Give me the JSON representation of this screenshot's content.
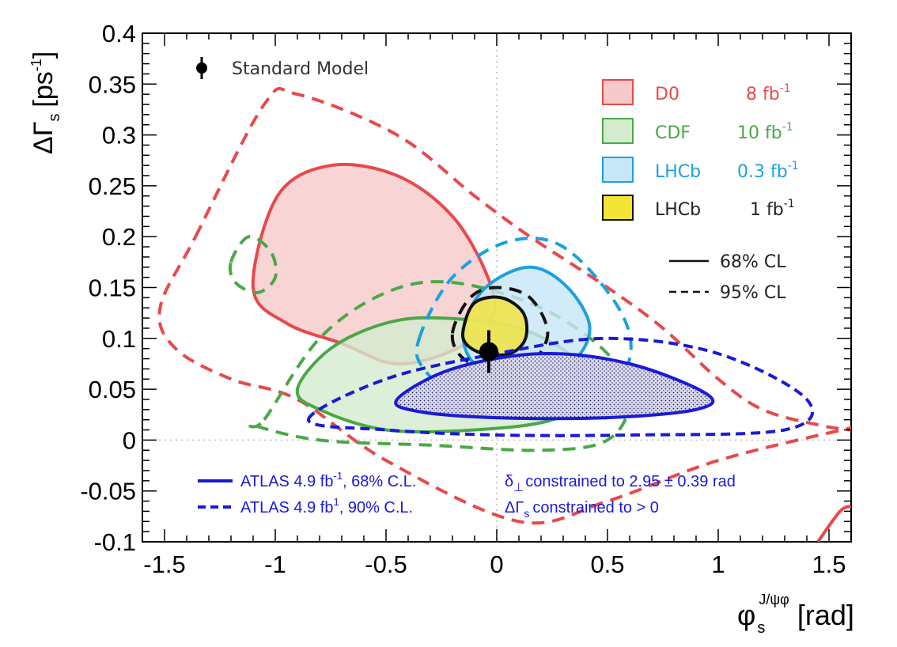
{
  "chart_data": {
    "type": "contour",
    "xlabel": "φ_s^{J/ψφ} [rad]",
    "xlabel_main": "φ",
    "xlabel_sub": "s",
    "xlabel_sup": "J/ψφ",
    "xlabel_unit": "[rad]",
    "ylabel": "ΔΓs [ps-1]",
    "ylabel_main": "ΔΓ",
    "ylabel_sub": "s",
    "ylabel_unit": "[ps",
    "ylabel_sup": "-1",
    "ylabel_close": "]",
    "xlim": [
      -1.6,
      1.6
    ],
    "ylim": [
      -0.1,
      0.4
    ],
    "x_ticks": [
      -1.5,
      -1,
      -0.5,
      0,
      0.5,
      1,
      1.5
    ],
    "x_tick_labels": [
      "-1.5",
      "-1",
      "-0.5",
      "0",
      "0.5",
      "1",
      "1.5"
    ],
    "y_ticks": [
      -0.1,
      -0.05,
      0,
      0.05,
      0.1,
      0.15,
      0.2,
      0.25,
      0.3,
      0.35,
      0.4
    ],
    "y_tick_labels": [
      "-0.1",
      "-0.05",
      "0",
      "0.05",
      "0.1",
      "0.15",
      "0.2",
      "0.25",
      "0.3",
      "0.35",
      "0.4"
    ],
    "standard_model": {
      "label": "Standard Model",
      "phi_s": -0.036,
      "dGamma_s": 0.087,
      "err_phi": 0.002,
      "err_dGamma": 0.021
    },
    "legend": [
      {
        "name": "D0",
        "lumi": "8 fb",
        "sup": "-1",
        "color": "#e8494b",
        "fill": "#f7c9cb"
      },
      {
        "name": "CDF",
        "lumi": "10 fb",
        "sup": "-1",
        "color": "#4aa847",
        "fill": "#d4ebd0"
      },
      {
        "name": "LHCb",
        "lumi": "0.3 fb",
        "sup": "-1",
        "color": "#1ca0e0",
        "fill": "#c7e6f6"
      },
      {
        "name": "LHCb",
        "lumi": "1 fb",
        "sup": "-1",
        "color": "#111111",
        "fill": "#f4e436"
      }
    ],
    "cl_legend": [
      {
        "label": "68% CL",
        "style": "solid"
      },
      {
        "label": "95% CL",
        "style": "dashed"
      }
    ],
    "atlas_legend": [
      {
        "label": "ATLAS 4.9 fb",
        "sup": "-1",
        "rest": ", 68% C.L.",
        "style": "solid"
      },
      {
        "label": "ATLAS 4.9 fb",
        "sup": "1",
        "rest": ", 90% C.L.",
        "style": "dashed"
      }
    ],
    "notes": [
      {
        "prefix": "δ",
        "sub": "⊥",
        "text": "constrained to 2.95 ± 0.39 rad"
      },
      {
        "prefix": "ΔΓ",
        "sub": "s",
        "text": "constrained to > 0"
      }
    ],
    "contours": [
      {
        "name": "D0 95% CL",
        "color": "#e8494b",
        "style": "dashed",
        "fill": "none",
        "points": [
          [
            -1.36,
            0.2
          ],
          [
            -1.05,
            0.33
          ],
          [
            -0.9,
            0.34
          ],
          [
            -0.45,
            0.3
          ],
          [
            -0.1,
            0.24
          ],
          [
            0.15,
            0.2
          ],
          [
            0.5,
            0.15
          ],
          [
            0.75,
            0.11
          ],
          [
            1.0,
            0.06
          ],
          [
            1.2,
            0.03
          ],
          [
            1.45,
            0.015
          ],
          [
            1.6,
            0.01
          ],
          [
            1.6,
            0.012
          ],
          [
            1.0,
            -0.02
          ],
          [
            0.5,
            -0.06
          ],
          [
            0.1,
            -0.08
          ],
          [
            -0.5,
            -0.02
          ],
          [
            -0.9,
            0.04
          ],
          [
            -1.2,
            0.06
          ],
          [
            -1.45,
            0.09
          ],
          [
            -1.52,
            0.13
          ]
        ]
      },
      {
        "name": "D0 68% CL",
        "color": "#e8494b",
        "style": "solid",
        "fill": "#f7c9cb",
        "points": [
          [
            -1.1,
            0.15
          ],
          [
            -0.99,
            0.24
          ],
          [
            -0.75,
            0.27
          ],
          [
            -0.45,
            0.26
          ],
          [
            -0.2,
            0.22
          ],
          [
            -0.04,
            0.16
          ],
          [
            -0.02,
            0.12
          ],
          [
            -0.18,
            0.09
          ],
          [
            -0.45,
            0.075
          ],
          [
            -0.7,
            0.095
          ],
          [
            -0.95,
            0.115
          ]
        ]
      },
      {
        "name": "CDF 95% CL region 1",
        "color": "#4aa847",
        "style": "dashed",
        "fill": "none",
        "points": [
          [
            -1.05,
            0.02
          ],
          [
            -0.8,
            0.1
          ],
          [
            -0.5,
            0.145
          ],
          [
            -0.2,
            0.155
          ],
          [
            0.2,
            0.13
          ],
          [
            0.5,
            0.085
          ],
          [
            0.6,
            0.04
          ],
          [
            0.5,
            0.0
          ],
          [
            0.2,
            -0.01
          ],
          [
            -0.3,
            -0.005
          ],
          [
            -0.8,
            0.0
          ],
          [
            -1.1,
            0.015
          ]
        ]
      },
      {
        "name": "CDF 95% CL region 2",
        "color": "#4aa847",
        "style": "dashed",
        "fill": "none",
        "points": [
          [
            -1.2,
            0.175
          ],
          [
            -1.12,
            0.2
          ],
          [
            -1.02,
            0.185
          ],
          [
            -1.0,
            0.16
          ],
          [
            -1.08,
            0.145
          ],
          [
            -1.18,
            0.155
          ]
        ]
      },
      {
        "name": "CDF 68% CL",
        "color": "#4aa847",
        "style": "solid",
        "fill": "#d4ebd0",
        "points": [
          [
            -0.9,
            0.05
          ],
          [
            -0.75,
            0.09
          ],
          [
            -0.5,
            0.115
          ],
          [
            -0.25,
            0.12
          ],
          [
            0.1,
            0.11
          ],
          [
            0.35,
            0.08
          ],
          [
            0.38,
            0.045
          ],
          [
            0.25,
            0.02
          ],
          [
            -0.1,
            0.01
          ],
          [
            -0.5,
            0.01
          ],
          [
            -0.8,
            0.03
          ]
        ]
      },
      {
        "name": "LHCb 0.3 fb-1 95% CL",
        "color": "#1ca0e0",
        "style": "dashed",
        "fill": "none",
        "points": [
          [
            -0.35,
            0.1
          ],
          [
            -0.2,
            0.16
          ],
          [
            0.05,
            0.195
          ],
          [
            0.3,
            0.19
          ],
          [
            0.55,
            0.13
          ],
          [
            0.6,
            0.08
          ],
          [
            0.45,
            0.04
          ],
          [
            0.15,
            0.025
          ],
          [
            -0.15,
            0.04
          ],
          [
            -0.33,
            0.07
          ]
        ]
      },
      {
        "name": "LHCb 0.3 fb-1 68% CL",
        "color": "#1ca0e0",
        "style": "solid",
        "fill": "#c7e6f6",
        "points": [
          [
            -0.15,
            0.11
          ],
          [
            -0.05,
            0.15
          ],
          [
            0.15,
            0.17
          ],
          [
            0.32,
            0.15
          ],
          [
            0.42,
            0.11
          ],
          [
            0.33,
            0.075
          ],
          [
            0.1,
            0.06
          ],
          [
            -0.1,
            0.075
          ]
        ]
      },
      {
        "name": "LHCb 1 fb-1 95% CL",
        "color": "#111111",
        "style": "dashed",
        "fill": "none",
        "points": [
          [
            -0.2,
            0.105
          ],
          [
            -0.12,
            0.14
          ],
          [
            0.0,
            0.15
          ],
          [
            0.15,
            0.14
          ],
          [
            0.23,
            0.105
          ],
          [
            0.15,
            0.075
          ],
          [
            0.0,
            0.068
          ],
          [
            -0.15,
            0.08
          ]
        ]
      },
      {
        "name": "LHCb 1 fb-1 68% CL",
        "color": "#111111",
        "style": "solid",
        "fill": "#f4e436",
        "points": [
          [
            -0.15,
            0.11
          ],
          [
            -0.1,
            0.135
          ],
          [
            0.02,
            0.14
          ],
          [
            0.12,
            0.125
          ],
          [
            0.13,
            0.1
          ],
          [
            0.06,
            0.085
          ],
          [
            -0.06,
            0.085
          ],
          [
            -0.14,
            0.095
          ]
        ]
      },
      {
        "name": "ATLAS 90% C.L.",
        "color": "#1a1ad8",
        "style": "dashed",
        "fill": "none",
        "points": [
          [
            -0.85,
            0.02
          ],
          [
            -0.5,
            0.06
          ],
          [
            0.0,
            0.085
          ],
          [
            0.5,
            0.1
          ],
          [
            1.0,
            0.085
          ],
          [
            1.4,
            0.04
          ],
          [
            1.3,
            0.01
          ],
          [
            0.6,
            0.005
          ],
          [
            0.0,
            0.005
          ],
          [
            -0.5,
            0.01
          ]
        ]
      },
      {
        "name": "ATLAS 68% C.L.",
        "color": "#1a1ad8",
        "style": "solid",
        "fill": "#dcdcec",
        "points": [
          [
            -0.45,
            0.04
          ],
          [
            -0.2,
            0.07
          ],
          [
            0.2,
            0.085
          ],
          [
            0.6,
            0.075
          ],
          [
            0.95,
            0.045
          ],
          [
            0.9,
            0.03
          ],
          [
            0.5,
            0.022
          ],
          [
            0.0,
            0.022
          ],
          [
            -0.35,
            0.028
          ]
        ]
      },
      {
        "name": "corner arc",
        "color": "#e8494b",
        "style": "solid",
        "fill": "none",
        "points": [
          [
            1.45,
            -0.1
          ],
          [
            1.55,
            -0.07
          ],
          [
            1.6,
            -0.065
          ]
        ]
      }
    ]
  }
}
